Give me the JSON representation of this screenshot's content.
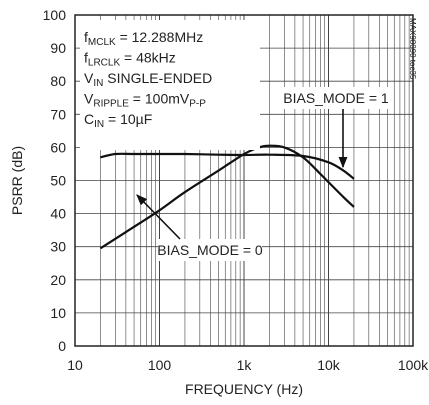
{
  "chart_data": {
    "type": "line",
    "title": "",
    "xlabel": "FREQUENCY (Hz)",
    "ylabel": "PSRR (dB)",
    "xscale": "log",
    "xlim": [
      10,
      100000
    ],
    "ylim": [
      0,
      100
    ],
    "grid": true,
    "x_tick_labels": [
      "10",
      "100",
      "1k",
      "10k",
      "100k"
    ],
    "y_tick_labels": [
      "0",
      "10",
      "20",
      "30",
      "40",
      "50",
      "60",
      "70",
      "80",
      "90",
      "100"
    ],
    "figure_id": "MAX98090 toc35",
    "conditions": [
      {
        "main": "f",
        "sub": "MCLK",
        "rest": " = 12.288MHz"
      },
      {
        "main": "f",
        "sub": "LRCLK",
        "rest": " = 48kHz"
      },
      {
        "main": "V",
        "sub": "IN",
        "rest": " SINGLE-ENDED"
      },
      {
        "main": "V",
        "sub": "RIPPLE",
        "rest": " = 100mV",
        "sub2": "P-P"
      },
      {
        "main": "C",
        "sub": "IN",
        "rest": " = 10µF"
      }
    ],
    "series": [
      {
        "name": "BIAS_MODE = 1",
        "x": [
          20,
          30,
          50,
          100,
          200,
          500,
          1000,
          2000,
          5000,
          10000,
          15000,
          20000
        ],
        "y": [
          57,
          58,
          58,
          58,
          58,
          57.8,
          57.7,
          57.8,
          57.4,
          55.5,
          53,
          50.5
        ]
      },
      {
        "name": "BIAS_MODE = 0",
        "x": [
          20,
          50,
          100,
          200,
          500,
          1000,
          1500,
          2000,
          3000,
          5000,
          8000,
          10000,
          15000,
          20000
        ],
        "y": [
          29.5,
          36,
          41,
          46.5,
          53,
          58,
          60,
          60.5,
          60,
          57,
          52,
          49.5,
          45,
          42
        ]
      }
    ],
    "annotations": [
      {
        "text": "BIAS_MODE = 1",
        "series": 0
      },
      {
        "text": "BIAS_MODE = 0",
        "series": 1
      }
    ]
  }
}
